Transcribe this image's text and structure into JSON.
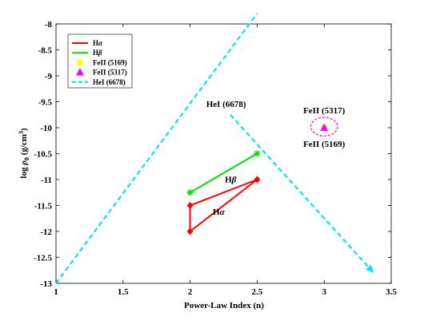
{
  "chart_data": {
    "type": "scatter",
    "title": "",
    "xlabel": "Power-Law Index (n)",
    "ylabel_prefix": "log ",
    "ylabel_rho": "ρ",
    "ylabel_sub": "0",
    "ylabel_units": " (g/cm",
    "ylabel_sup": "3",
    "ylabel_close": ")",
    "xlim": [
      1,
      3.5
    ],
    "ylim": [
      -13,
      -8
    ],
    "xticks": [
      1,
      1.5,
      2,
      2.5,
      3,
      3.5
    ],
    "xtick_labels": [
      "1",
      "1.5",
      "2",
      "2.5",
      "3",
      "3.5"
    ],
    "yticks": [
      -13,
      -12.5,
      -12,
      -11.5,
      -11,
      -10.5,
      -10,
      -9.5,
      -9,
      -8.5,
      -8
    ],
    "ytick_labels": [
      "-13",
      "-12.5",
      "-12",
      "-11.5",
      "-11",
      "-10.5",
      "-10",
      "-9.5",
      "-9",
      "-8.5",
      "-8"
    ],
    "grid": false,
    "legend_position": "top-left",
    "series": [
      {
        "name": "Hα",
        "label_base": "H",
        "label_greek": "α",
        "marker": "diamond",
        "color": "#ff0000",
        "points": [
          [
            2,
            -11.5
          ],
          [
            2,
            -12
          ],
          [
            2.5,
            -11
          ],
          [
            2,
            -11.5
          ]
        ]
      },
      {
        "name": "Hβ",
        "label_base": "H",
        "label_greek": "β",
        "marker": "star",
        "color": "#00dd00",
        "points": [
          [
            2,
            -11.25
          ],
          [
            2.5,
            -10.5
          ]
        ]
      },
      {
        "name": "FeII (5169)",
        "label_base": "FeII (5169)",
        "label_greek": "",
        "marker": "square",
        "color": "#ffff00",
        "points": [
          [
            3,
            -10
          ]
        ]
      },
      {
        "name": "FeII (5317)",
        "label_base": "FeII (5317)",
        "label_greek": "",
        "marker": "triangle",
        "color": "#ff00ff",
        "points": [
          [
            3,
            -10
          ]
        ]
      },
      {
        "name": "HeI (6678)",
        "label_base": "HeI (6678)",
        "label_greek": "",
        "marker": "dashed-line",
        "color": "#00e5ee",
        "segments": [
          [
            [
              1,
              -13
            ],
            [
              2.5,
              -7.8
            ]
          ],
          [
            [
              2.3,
              -9.75
            ],
            [
              3.37,
              -12.8
            ]
          ]
        ]
      }
    ],
    "annotations": [
      {
        "id": "hei",
        "text": "HeI (6678)",
        "greek": "",
        "x": 2.12,
        "y": -9.6
      },
      {
        "id": "hbeta",
        "text": "H",
        "greek": "β",
        "x": 2.26,
        "y": -11.05
      },
      {
        "id": "halpha",
        "text": "H",
        "greek": "α",
        "x": 2.17,
        "y": -11.68
      },
      {
        "id": "fe5317",
        "text": "FeII (5317)",
        "greek": "",
        "x": 3.0,
        "y": -9.72
      },
      {
        "id": "fe5169",
        "text": "FeII (5169)",
        "greek": "",
        "x": 3.0,
        "y": -10.37
      }
    ],
    "ellipse": {
      "cx": 3.0,
      "cy": -9.98,
      "rx": 0.1,
      "ry": 0.18,
      "color": "#ff00ff"
    }
  }
}
